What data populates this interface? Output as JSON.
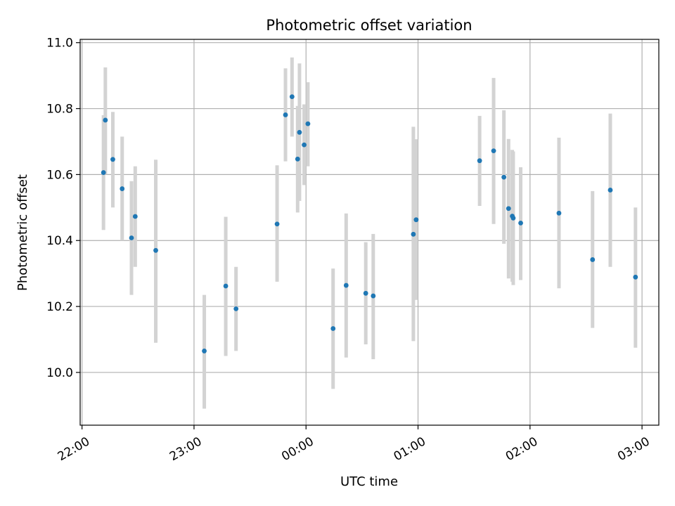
{
  "chart_data": {
    "type": "scatter",
    "title": "Photometric offset variation",
    "xlabel": "UTC time",
    "ylabel": "Photometric offset",
    "x_is_time": true,
    "xlim": [
      "21:59",
      "03:09"
    ],
    "ylim": [
      9.84,
      11.01
    ],
    "x_ticks": [
      "22:00",
      "23:00",
      "00:00",
      "01:00",
      "02:00",
      "03:00"
    ],
    "y_ticks": [
      "10.0",
      "10.2",
      "10.4",
      "10.6",
      "10.8",
      "11.0"
    ],
    "grid": true,
    "legend": "none",
    "marker_color": "#1f77b4",
    "errorbar_color": "#d3d3d3",
    "points": [
      {
        "x": "22:11:30",
        "y": 10.606,
        "lo": 10.432,
        "hi": 10.78
      },
      {
        "x": "22:12:30",
        "y": 10.765,
        "lo": 10.6,
        "hi": 10.925
      },
      {
        "x": "22:16:30",
        "y": 10.646,
        "lo": 10.5,
        "hi": 10.79
      },
      {
        "x": "22:21:30",
        "y": 10.557,
        "lo": 10.4,
        "hi": 10.715
      },
      {
        "x": "22:26:30",
        "y": 10.408,
        "lo": 10.235,
        "hi": 10.58
      },
      {
        "x": "22:28:30",
        "y": 10.473,
        "lo": 10.32,
        "hi": 10.625
      },
      {
        "x": "22:39:30",
        "y": 10.37,
        "lo": 10.09,
        "hi": 10.645
      },
      {
        "x": "23:05:30",
        "y": 10.065,
        "lo": 9.89,
        "hi": 10.235
      },
      {
        "x": "23:17:00",
        "y": 10.262,
        "lo": 10.05,
        "hi": 10.472
      },
      {
        "x": "23:22:30",
        "y": 10.193,
        "lo": 10.065,
        "hi": 10.32
      },
      {
        "x": "23:44:30",
        "y": 10.45,
        "lo": 10.275,
        "hi": 10.628
      },
      {
        "x": "23:49:00",
        "y": 10.781,
        "lo": 10.64,
        "hi": 10.922
      },
      {
        "x": "23:52:30",
        "y": 10.836,
        "lo": 10.715,
        "hi": 10.955
      },
      {
        "x": "23:55:30",
        "y": 10.647,
        "lo": 10.485,
        "hi": 10.808
      },
      {
        "x": "23:56:30",
        "y": 10.728,
        "lo": 10.52,
        "hi": 10.937
      },
      {
        "x": "23:59:00",
        "y": 10.69,
        "lo": 10.568,
        "hi": 10.813
      },
      {
        "x": "00:01:00",
        "y": 10.754,
        "lo": 10.625,
        "hi": 10.88
      },
      {
        "x": "00:14:30",
        "y": 10.133,
        "lo": 9.95,
        "hi": 10.315
      },
      {
        "x": "00:21:30",
        "y": 10.264,
        "lo": 10.045,
        "hi": 10.482
      },
      {
        "x": "00:32:00",
        "y": 10.24,
        "lo": 10.085,
        "hi": 10.395
      },
      {
        "x": "00:36:00",
        "y": 10.232,
        "lo": 10.04,
        "hi": 10.42
      },
      {
        "x": "00:57:30",
        "y": 10.419,
        "lo": 10.095,
        "hi": 10.745
      },
      {
        "x": "00:59:00",
        "y": 10.463,
        "lo": 10.22,
        "hi": 10.707
      },
      {
        "x": "01:33:00",
        "y": 10.642,
        "lo": 10.505,
        "hi": 10.778
      },
      {
        "x": "01:40:30",
        "y": 10.672,
        "lo": 10.45,
        "hi": 10.893
      },
      {
        "x": "01:46:00",
        "y": 10.592,
        "lo": 10.39,
        "hi": 10.795
      },
      {
        "x": "01:48:30",
        "y": 10.497,
        "lo": 10.285,
        "hi": 10.708
      },
      {
        "x": "01:50:30",
        "y": 10.474,
        "lo": 10.275,
        "hi": 10.675
      },
      {
        "x": "01:51:00",
        "y": 10.468,
        "lo": 10.265,
        "hi": 10.67
      },
      {
        "x": "01:55:00",
        "y": 10.453,
        "lo": 10.28,
        "hi": 10.622
      },
      {
        "x": "02:15:30",
        "y": 10.483,
        "lo": 10.255,
        "hi": 10.712
      },
      {
        "x": "02:33:30",
        "y": 10.342,
        "lo": 10.135,
        "hi": 10.55
      },
      {
        "x": "02:43:00",
        "y": 10.553,
        "lo": 10.32,
        "hi": 10.785
      },
      {
        "x": "02:56:30",
        "y": 10.289,
        "lo": 10.075,
        "hi": 10.5
      }
    ]
  }
}
